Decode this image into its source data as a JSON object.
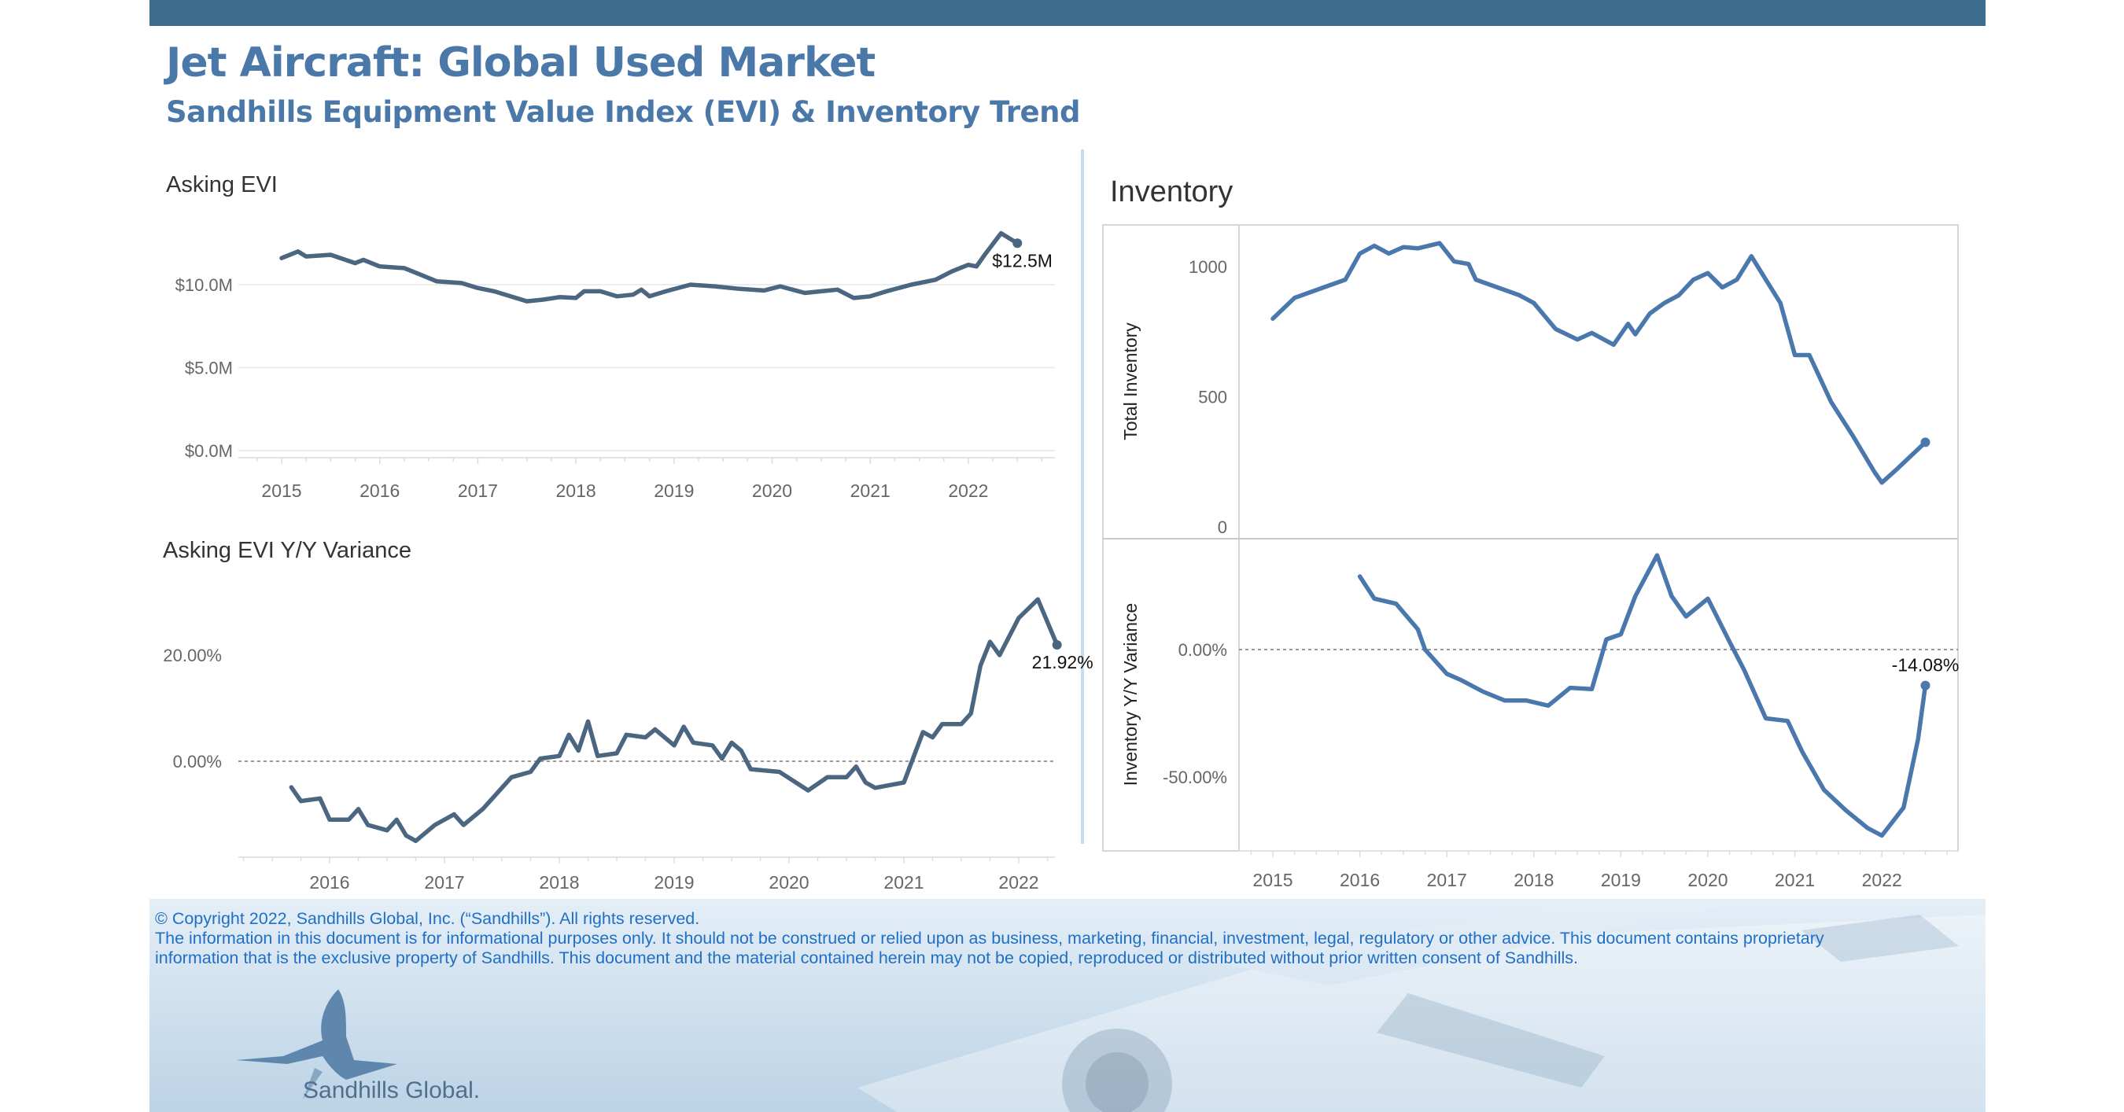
{
  "header": {
    "title": "Jet Aircraft:  Global Used Market",
    "subtitle": "Sandhills Equipment Value Index (EVI) & Inventory Trend"
  },
  "colors": {
    "top_bar": "#3d6e90",
    "title": "#4a78a8",
    "evi_line": "#4b6680",
    "inventory_line": "#4a78ad",
    "footer_text": "#1f6fc5"
  },
  "chart_data": [
    {
      "type": "line",
      "title": "Asking EVI",
      "yticks": [
        "$0.0M",
        "$5.0M",
        "$10.0M"
      ],
      "ytick_values": [
        0,
        5,
        10
      ],
      "xticks": [
        "2015",
        "2016",
        "2017",
        "2018",
        "2019",
        "2020",
        "2021",
        "2022"
      ],
      "ylim": [
        0,
        14
      ],
      "grid": true,
      "end_label": "$12.5M",
      "x": [
        "2015-01",
        "2015-03",
        "2015-04",
        "2015-07",
        "2015-10",
        "2015-11",
        "2016-01",
        "2016-04",
        "2016-06",
        "2016-08",
        "2016-11",
        "2017-01",
        "2017-03",
        "2017-05",
        "2017-07",
        "2017-09",
        "2017-11",
        "2018-01",
        "2018-02",
        "2018-04",
        "2018-06",
        "2018-08",
        "2018-09",
        "2018-10",
        "2018-12",
        "2019-03",
        "2019-06",
        "2019-09",
        "2019-12",
        "2020-02",
        "2020-05",
        "2020-07",
        "2020-09",
        "2020-11",
        "2021-01",
        "2021-03",
        "2021-06",
        "2021-09",
        "2021-11",
        "2022-01",
        "2022-02",
        "2022-03",
        "2022-05",
        "2022-07"
      ],
      "values": [
        11.6,
        12.0,
        11.7,
        11.8,
        11.3,
        11.5,
        11.1,
        11.0,
        10.6,
        10.2,
        10.1,
        9.8,
        9.6,
        9.3,
        9.0,
        9.1,
        9.25,
        9.2,
        9.6,
        9.6,
        9.3,
        9.4,
        9.7,
        9.3,
        9.6,
        10.0,
        9.9,
        9.75,
        9.65,
        9.9,
        9.5,
        9.6,
        9.7,
        9.2,
        9.3,
        9.6,
        10.0,
        10.3,
        10.8,
        11.2,
        11.1,
        11.8,
        13.1,
        12.5
      ]
    },
    {
      "type": "line",
      "title": "Asking EVI Y/Y Variance",
      "yticks": [
        "0.00%",
        "20.00%"
      ],
      "ytick_values": [
        0,
        20
      ],
      "xticks": [
        "2016",
        "2017",
        "2018",
        "2019",
        "2020",
        "2021",
        "2022"
      ],
      "ylim": [
        -17,
        34
      ],
      "reference_line": 0,
      "end_label": "21.92%",
      "x": [
        "2015-09",
        "2015-10",
        "2015-12",
        "2016-01",
        "2016-03",
        "2016-04",
        "2016-05",
        "2016-07",
        "2016-08",
        "2016-09",
        "2016-10",
        "2016-12",
        "2017-02",
        "2017-03",
        "2017-05",
        "2017-08",
        "2017-10",
        "2017-11",
        "2018-01",
        "2018-02",
        "2018-03",
        "2018-04",
        "2018-05",
        "2018-07",
        "2018-08",
        "2018-10",
        "2018-11",
        "2019-01",
        "2019-02",
        "2019-03",
        "2019-05",
        "2019-06",
        "2019-07",
        "2019-08",
        "2019-09",
        "2019-12",
        "2020-03",
        "2020-05",
        "2020-07",
        "2020-08",
        "2020-09",
        "2020-10",
        "2021-01",
        "2021-03",
        "2021-04",
        "2021-05",
        "2021-07",
        "2021-08",
        "2021-09",
        "2021-10",
        "2021-11",
        "2022-01",
        "2022-03",
        "2022-05"
      ],
      "values": [
        -4.9,
        -7.5,
        -7,
        -11,
        -11,
        -9,
        -12,
        -13,
        -11,
        -14,
        -15,
        -12,
        -10,
        -12,
        -9,
        -3,
        -2,
        0.5,
        1,
        5,
        2,
        7.5,
        1,
        1.5,
        5,
        4.5,
        6,
        3,
        6.5,
        3.5,
        3,
        0.5,
        3.5,
        2,
        -1.5,
        -2,
        -5.5,
        -3,
        -3,
        -1,
        -4,
        -5,
        -4,
        5.5,
        4.5,
        7,
        7,
        9,
        18,
        22.5,
        20,
        27,
        30.5,
        21.92
      ]
    },
    {
      "type": "line",
      "title": "Inventory",
      "ylabel": "Total Inventory",
      "yticks": [
        "0",
        "500",
        "1000"
      ],
      "ytick_values": [
        0,
        500,
        1000
      ],
      "xticks": [
        "2015",
        "2016",
        "2017",
        "2018",
        "2019",
        "2020",
        "2021",
        "2022"
      ],
      "ylim": [
        0,
        1150
      ],
      "x": [
        "2015-01",
        "2015-04",
        "2015-08",
        "2015-11",
        "2016-01",
        "2016-03",
        "2016-05",
        "2016-07",
        "2016-09",
        "2016-12",
        "2017-02",
        "2017-04",
        "2017-05",
        "2017-08",
        "2017-11",
        "2018-01",
        "2018-04",
        "2018-07",
        "2018-09",
        "2018-12",
        "2019-02",
        "2019-03",
        "2019-05",
        "2019-07",
        "2019-09",
        "2019-11",
        "2020-01",
        "2020-03",
        "2020-05",
        "2020-07",
        "2020-09",
        "2020-11",
        "2021-01",
        "2021-03",
        "2021-06",
        "2021-09",
        "2021-12",
        "2022-01",
        "2022-03",
        "2022-07"
      ],
      "values": [
        800,
        880,
        920,
        950,
        1050,
        1080,
        1050,
        1075,
        1070,
        1090,
        1020,
        1010,
        950,
        920,
        890,
        860,
        760,
        720,
        745,
        700,
        780,
        740,
        820,
        860,
        890,
        950,
        975,
        920,
        950,
        1040,
        950,
        860,
        660,
        660,
        480,
        350,
        210,
        170,
        220,
        325
      ]
    },
    {
      "type": "line",
      "title": "",
      "ylabel": "Inventory  Y/Y Variance",
      "yticks": [
        "-50.00%",
        "0.00%"
      ],
      "ytick_values": [
        -50,
        0
      ],
      "ylim": [
        -80,
        45
      ],
      "reference_line": 0,
      "end_label": "-14.08%",
      "x": [
        "2016-01",
        "2016-03",
        "2016-06",
        "2016-09",
        "2016-10",
        "2017-01",
        "2017-03",
        "2017-06",
        "2017-09",
        "2017-12",
        "2018-03",
        "2018-06",
        "2018-09",
        "2018-11",
        "2019-01",
        "2019-03",
        "2019-06",
        "2019-08",
        "2019-10",
        "2020-01",
        "2020-04",
        "2020-06",
        "2020-09",
        "2020-12",
        "2021-02",
        "2021-05",
        "2021-08",
        "2021-11",
        "2022-01",
        "2022-04",
        "2022-06",
        "2022-07"
      ],
      "values": [
        28.7,
        20,
        18,
        8,
        0,
        -9.5,
        -12,
        -16.5,
        -20,
        -20,
        -22,
        -15,
        -15.5,
        4,
        6,
        21,
        37,
        21,
        13,
        20,
        3,
        -8,
        -27,
        -28,
        -40,
        -55,
        -63,
        -70,
        -73,
        -62,
        -35,
        -14.08
      ]
    }
  ],
  "footer": {
    "copyright": "© Copyright 2022, Sandhills Global, Inc. (“Sandhills”). All rights reserved.",
    "disclaimer_line1": "The information in this document is for informational purposes only.  It should not be construed or relied upon as business, marketing, financial, investment, legal, regulatory or other advice. This document contains proprietary",
    "disclaimer_line2": "information that is the exclusive property of Sandhills. This document and the material contained herein may not be copied, reproduced or distributed without prior written consent of Sandhills.",
    "logo_text": "Sandhills Global."
  }
}
